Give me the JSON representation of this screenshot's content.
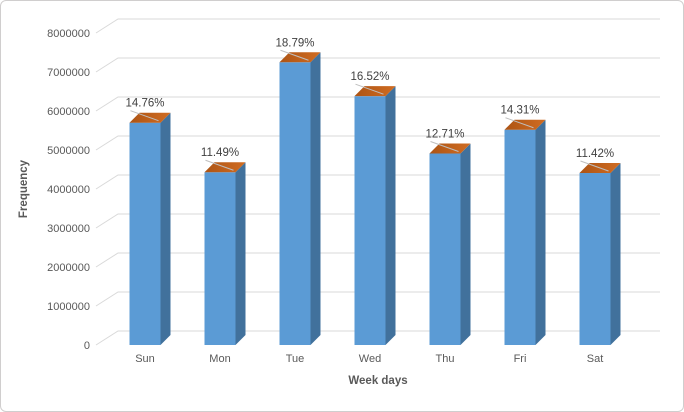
{
  "window": {
    "background": "#FFFFFF",
    "border_color": "#D0CECE"
  },
  "chart_data": {
    "type": "bar",
    "style": "3d-column",
    "title": "",
    "xlabel": "Week days",
    "ylabel": "Frequency",
    "categories": [
      "Sun",
      "Mon",
      "Tue",
      "Wed",
      "Thu",
      "Fri",
      "Sat"
    ],
    "values": [
      5700000,
      4430000,
      7250000,
      6380000,
      4910000,
      5520000,
      4410000
    ],
    "data_labels": [
      "14.76%",
      "11.49%",
      "18.79%",
      "16.52%",
      "12.71%",
      "14.31%",
      "11.42%"
    ],
    "ylim": [
      0,
      8000000
    ],
    "ytick_step": 1000000,
    "ytick_labels": [
      "0",
      "1000000",
      "2000000",
      "3000000",
      "4000000",
      "5000000",
      "6000000",
      "7000000",
      "8000000"
    ],
    "grid": true,
    "legend": "none",
    "colors": {
      "bar_front": "#5B9BD5",
      "bar_side": "#41719C",
      "cap_dark": "#AD5414",
      "cap_light": "#D06C22",
      "gridline": "#D9D9D9",
      "leader_line": "#BFBFBF",
      "tick_text": "#595959",
      "axis_title_text": "#595959",
      "data_label_text": "#404040"
    }
  }
}
